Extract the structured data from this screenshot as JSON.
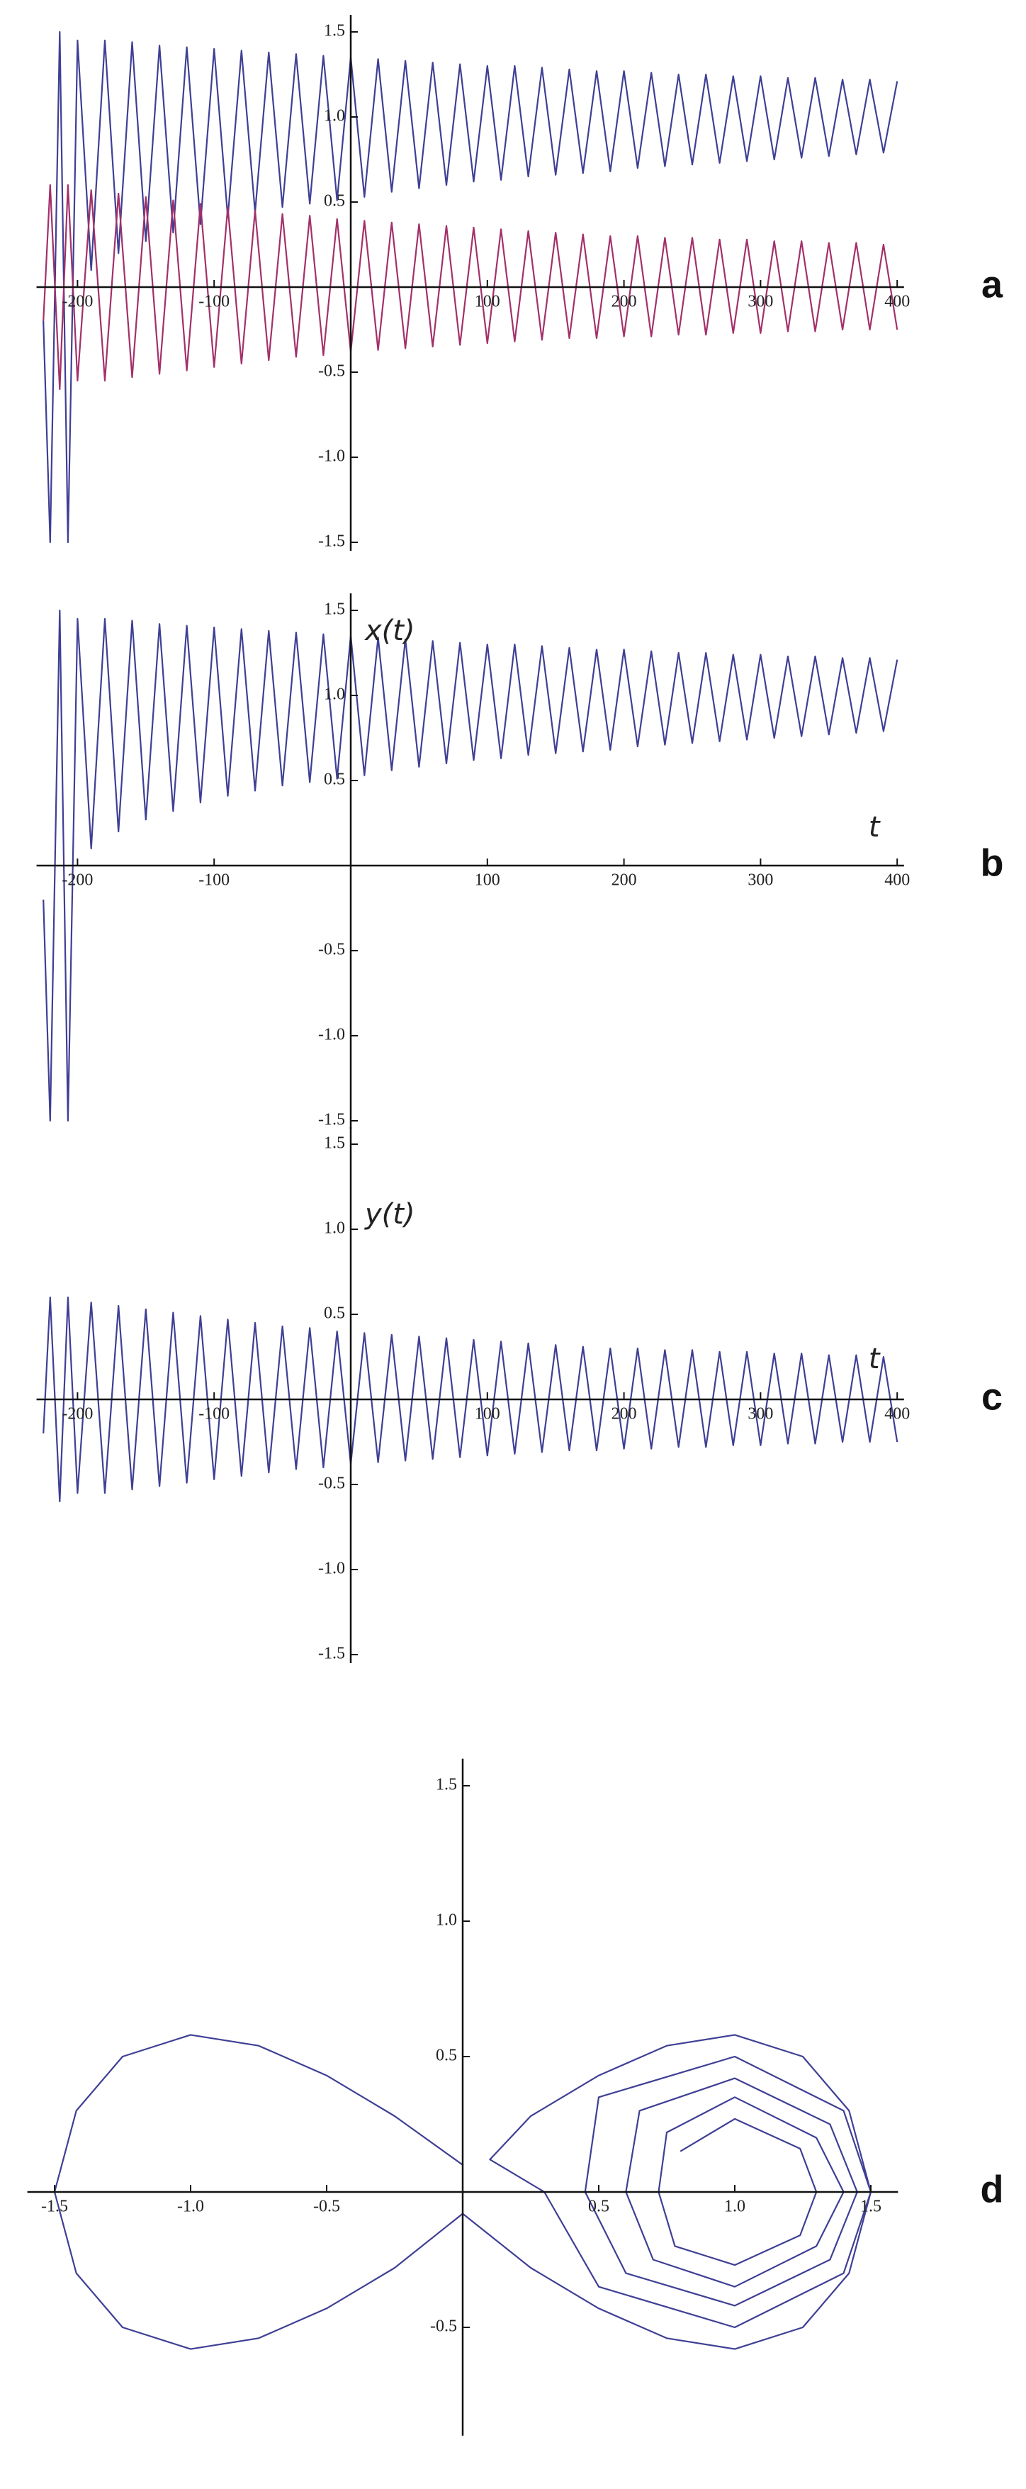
{
  "chart_data": [
    {
      "type": "line",
      "panel_label": "a",
      "x": [
        -225,
        -220,
        -213,
        -207,
        -200,
        -190,
        -180,
        -170,
        -160,
        -150,
        -140,
        -130,
        -120,
        -110,
        -100,
        -90,
        -80,
        -70,
        -60,
        -50,
        -40,
        -30,
        -20,
        -10,
        0,
        10,
        20,
        30,
        40,
        50,
        60,
        70,
        80,
        90,
        100,
        110,
        120,
        130,
        140,
        150,
        160,
        170,
        180,
        190,
        200,
        210,
        220,
        230,
        240,
        250,
        260,
        270,
        280,
        290,
        300,
        310,
        320,
        330,
        340,
        350,
        360,
        370,
        380,
        390,
        400
      ],
      "series": [
        {
          "color": "#3f3f95",
          "values": [
            -0.2,
            -1.5,
            1.5,
            -1.5,
            1.45,
            0.1,
            1.45,
            0.2,
            1.44,
            0.27,
            1.42,
            0.32,
            1.41,
            0.37,
            1.4,
            0.41,
            1.39,
            0.44,
            1.38,
            0.47,
            1.37,
            0.49,
            1.36,
            0.51,
            1.35,
            0.53,
            1.34,
            0.56,
            1.33,
            0.58,
            1.32,
            0.6,
            1.31,
            0.62,
            1.3,
            0.63,
            1.3,
            0.65,
            1.29,
            0.66,
            1.28,
            0.67,
            1.27,
            0.68,
            1.27,
            0.7,
            1.26,
            0.71,
            1.25,
            0.72,
            1.25,
            0.73,
            1.24,
            0.74,
            1.24,
            0.75,
            1.23,
            0.76,
            1.23,
            0.77,
            1.22,
            0.78,
            1.22,
            0.79,
            1.21
          ]
        },
        {
          "color": "#a3306a",
          "values": [
            -0.2,
            0.6,
            -0.6,
            0.6,
            -0.55,
            0.57,
            -0.55,
            0.55,
            -0.53,
            0.53,
            -0.51,
            0.51,
            -0.49,
            0.49,
            -0.47,
            0.47,
            -0.45,
            0.45,
            -0.43,
            0.43,
            -0.41,
            0.42,
            -0.4,
            0.4,
            -0.38,
            0.39,
            -0.37,
            0.38,
            -0.36,
            0.37,
            -0.35,
            0.36,
            -0.34,
            0.35,
            -0.33,
            0.34,
            -0.32,
            0.33,
            -0.31,
            0.32,
            -0.3,
            0.31,
            -0.3,
            0.3,
            -0.29,
            0.3,
            -0.29,
            0.29,
            -0.28,
            0.29,
            -0.28,
            0.28,
            -0.27,
            0.28,
            -0.27,
            0.27,
            -0.26,
            0.27,
            -0.26,
            0.26,
            -0.25,
            0.26,
            -0.25,
            0.25,
            -0.25
          ]
        }
      ],
      "xlim": [
        -230,
        405
      ],
      "ylim": [
        -1.55,
        1.6
      ],
      "xticks": [
        -200,
        -100,
        100,
        200,
        300,
        400
      ],
      "yticks": [
        -1.5,
        {
          "value": -1,
          "label": "-1.0"
        },
        -0.5,
        0.5,
        {
          "value": 1,
          "label": "1.0"
        },
        1.5
      ]
    },
    {
      "type": "line",
      "panel_label": "b",
      "xlabel": "t",
      "ylabel": "x(t)",
      "x": [
        -225,
        -220,
        -213,
        -207,
        -200,
        -190,
        -180,
        -170,
        -160,
        -150,
        -140,
        -130,
        -120,
        -110,
        -100,
        -90,
        -80,
        -70,
        -60,
        -50,
        -40,
        -30,
        -20,
        -10,
        0,
        10,
        20,
        30,
        40,
        50,
        60,
        70,
        80,
        90,
        100,
        110,
        120,
        130,
        140,
        150,
        160,
        170,
        180,
        190,
        200,
        210,
        220,
        230,
        240,
        250,
        260,
        270,
        280,
        290,
        300,
        310,
        320,
        330,
        340,
        350,
        360,
        370,
        380,
        390,
        400
      ],
      "series": [
        {
          "color": "#3f3f95",
          "values": [
            -0.2,
            -1.5,
            1.5,
            -1.5,
            1.45,
            0.1,
            1.45,
            0.2,
            1.44,
            0.27,
            1.42,
            0.32,
            1.41,
            0.37,
            1.4,
            0.41,
            1.39,
            0.44,
            1.38,
            0.47,
            1.37,
            0.49,
            1.36,
            0.51,
            1.35,
            0.53,
            1.34,
            0.56,
            1.33,
            0.58,
            1.32,
            0.6,
            1.31,
            0.62,
            1.3,
            0.63,
            1.3,
            0.65,
            1.29,
            0.66,
            1.28,
            0.67,
            1.27,
            0.68,
            1.27,
            0.7,
            1.26,
            0.71,
            1.25,
            0.72,
            1.25,
            0.73,
            1.24,
            0.74,
            1.24,
            0.75,
            1.23,
            0.76,
            1.23,
            0.77,
            1.22,
            0.78,
            1.22,
            0.79,
            1.21
          ]
        }
      ],
      "xlim": [
        -230,
        405
      ],
      "ylim": [
        -1.55,
        1.6
      ],
      "xticks": [
        -200,
        -100,
        100,
        200,
        300,
        400
      ],
      "yticks": [
        -1.5,
        {
          "value": -1,
          "label": "-1.0"
        },
        -0.5,
        0.5,
        {
          "value": 1,
          "label": "1.0"
        },
        1.5
      ]
    },
    {
      "type": "line",
      "panel_label": "c",
      "xlabel": "t",
      "ylabel": "y(t)",
      "x": [
        -225,
        -220,
        -213,
        -207,
        -200,
        -190,
        -180,
        -170,
        -160,
        -150,
        -140,
        -130,
        -120,
        -110,
        -100,
        -90,
        -80,
        -70,
        -60,
        -50,
        -40,
        -30,
        -20,
        -10,
        0,
        10,
        20,
        30,
        40,
        50,
        60,
        70,
        80,
        90,
        100,
        110,
        120,
        130,
        140,
        150,
        160,
        170,
        180,
        190,
        200,
        210,
        220,
        230,
        240,
        250,
        260,
        270,
        280,
        290,
        300,
        310,
        320,
        330,
        340,
        350,
        360,
        370,
        380,
        390,
        400
      ],
      "series": [
        {
          "color": "#3f3f95",
          "values": [
            -0.2,
            0.6,
            -0.6,
            0.6,
            -0.55,
            0.57,
            -0.55,
            0.55,
            -0.53,
            0.53,
            -0.51,
            0.51,
            -0.49,
            0.49,
            -0.47,
            0.47,
            -0.45,
            0.45,
            -0.43,
            0.43,
            -0.41,
            0.42,
            -0.4,
            0.4,
            -0.38,
            0.39,
            -0.37,
            0.38,
            -0.36,
            0.37,
            -0.35,
            0.36,
            -0.34,
            0.35,
            -0.33,
            0.34,
            -0.32,
            0.33,
            -0.31,
            0.32,
            -0.3,
            0.31,
            -0.3,
            0.3,
            -0.29,
            0.3,
            -0.29,
            0.29,
            -0.28,
            0.29,
            -0.28,
            0.28,
            -0.27,
            0.28,
            -0.27,
            0.27,
            -0.26,
            0.27,
            -0.26,
            0.26,
            -0.25,
            0.26,
            -0.25,
            0.25,
            -0.25
          ]
        }
      ],
      "xlim": [
        -230,
        405
      ],
      "ylim": [
        -1.55,
        1.6
      ],
      "xticks": [
        -200,
        -100,
        100,
        200,
        300,
        400
      ],
      "yticks": [
        -1.5,
        {
          "value": -1,
          "label": "-1.0"
        },
        -0.5,
        0.5,
        {
          "value": 1,
          "label": "1.0"
        },
        1.5
      ]
    },
    {
      "type": "line",
      "panel_label": "d",
      "x": [
        0,
        -0.25,
        -0.5,
        -0.75,
        -1,
        -1.25,
        -1.42,
        -1.5,
        -1.42,
        -1.25,
        -1,
        -0.75,
        -0.5,
        -0.25,
        0,
        0.25,
        0.5,
        0.75,
        1,
        1.25,
        1.42,
        1.5,
        1.42,
        1.25,
        1,
        0.75,
        0.5,
        0.25,
        0.1,
        0.3,
        0.5,
        1,
        1.4,
        1.5,
        1.4,
        1,
        0.5,
        0.45,
        0.6,
        1,
        1.35,
        1.45,
        1.35,
        1,
        0.65,
        0.6,
        0.7,
        1,
        1.3,
        1.4,
        1.3,
        1,
        0.75,
        0.72,
        0.78,
        1,
        1.24,
        1.3,
        1.24,
        1,
        0.8
      ],
      "series": [
        {
          "color": "#3f3f95",
          "values": [
            0.1,
            0.28,
            0.43,
            0.54,
            0.58,
            0.5,
            0.3,
            0,
            -0.3,
            -0.5,
            -0.58,
            -0.54,
            -0.43,
            -0.28,
            -0.08,
            -0.28,
            -0.43,
            -0.54,
            -0.58,
            -0.5,
            -0.3,
            0,
            0.3,
            0.5,
            0.58,
            0.54,
            0.43,
            0.28,
            0.12,
            0,
            -0.35,
            -0.5,
            -0.3,
            0,
            0.3,
            0.5,
            0.35,
            0,
            -0.3,
            -0.42,
            -0.25,
            0,
            0.25,
            0.42,
            0.3,
            0,
            -0.25,
            -0.35,
            -0.2,
            0,
            0.2,
            0.35,
            0.22,
            0,
            -0.2,
            -0.27,
            -0.16,
            0,
            0.16,
            0.27,
            0.15
          ]
        }
      ],
      "xlim": [
        -1.6,
        1.6
      ],
      "ylim": [
        -0.9,
        1.6
      ],
      "xticks": [
        -1.5,
        {
          "value": -1,
          "label": "-1.0"
        },
        -0.5,
        0.5,
        {
          "value": 1,
          "label": "1.0"
        },
        1.5
      ],
      "yticks": [
        -0.5,
        0.5,
        {
          "value": 1,
          "label": "1.0"
        },
        1.5
      ]
    }
  ]
}
